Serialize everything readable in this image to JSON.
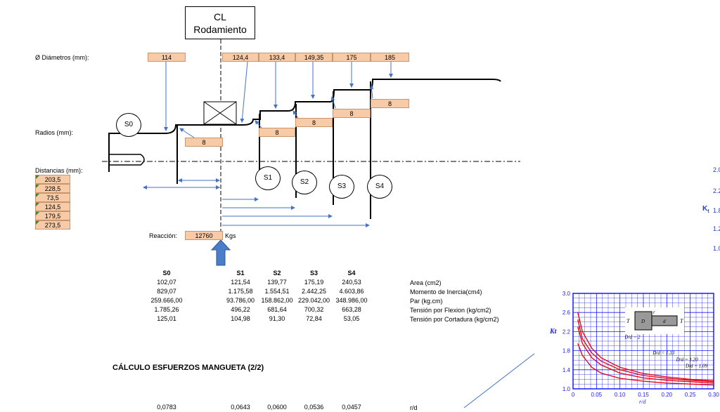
{
  "cl_box": {
    "line1": "CL",
    "line2": "Rodamiento"
  },
  "labels": {
    "diametros": "Ø Diámetros (mm):",
    "radios": "Radios (mm):",
    "distancias": "Distancias (mm):",
    "reaccion": "Reacción:",
    "reaccion_value": "12760",
    "reaccion_unit": "Kgs"
  },
  "diameters": [
    "114",
    "124,4",
    "133,4",
    "149,35",
    "175",
    "185"
  ],
  "radii": [
    "8",
    "8",
    "8",
    "8",
    "8"
  ],
  "distances": [
    "203,5",
    "228,5",
    "73,5",
    "124,5",
    "179,5",
    "273,5"
  ],
  "sections": [
    "S0",
    "S1",
    "S2",
    "S3",
    "S4"
  ],
  "table": {
    "headers": [
      "S0",
      "S1",
      "S2",
      "S3",
      "S4"
    ],
    "rows": [
      {
        "values": [
          "102,07",
          "121,54",
          "139,77",
          "175,19",
          "240,53"
        ],
        "label": "Area (cm2)"
      },
      {
        "values": [
          "829,07",
          "1.175,58",
          "1.554,51",
          "2.442,25",
          "4.603,86"
        ],
        "label": "Momento de Inercia(cm4)"
      },
      {
        "values": [
          "259.666,00",
          "93.786,00",
          "158.862,00",
          "229.042,00",
          "348.986,00"
        ],
        "label": "Par (kg.cm)"
      },
      {
        "values": [
          "1.785,26",
          "496,22",
          "681,64",
          "700,32",
          "663,28"
        ],
        "label": "Tensión por Flexion (kg/cm2)"
      },
      {
        "values": [
          "125,01",
          "104,98",
          "91,30",
          "72,84",
          "53,05"
        ],
        "label": "Tensión por Cortadura (kg/cm2)"
      }
    ],
    "partial_row": [
      "0,0783",
      "0,0643",
      "0,0600",
      "0,0536",
      "0,0457"
    ],
    "partial_label": "r/d"
  },
  "section_title": "CÁLCULO ESFUERZOS MANGUETA (2/2)",
  "right_edge_ticks": [
    "2.0",
    "2.2",
    "1.8",
    "1.2",
    "1.0"
  ],
  "kt_side_label": "K",
  "kt_side_sub": "t",
  "chart_data": {
    "type": "line",
    "title": "",
    "xlabel": "r/d",
    "ylabel": "Kt",
    "xlim": [
      0,
      0.3
    ],
    "ylim": [
      1.0,
      3.0
    ],
    "x_ticks": [
      "0",
      "0.05",
      "0.10",
      "0.15",
      "0.20",
      "0.25",
      "0.30"
    ],
    "y_ticks": [
      "1.0",
      "1.4",
      "1.8",
      "2.2",
      "2.6",
      "3.0"
    ],
    "grid": true,
    "inset_labels": {
      "T": "T",
      "D": "D",
      "d": "d",
      "r": "r"
    },
    "series": [
      {
        "name": "D/d = 2",
        "x": [
          0.01,
          0.02,
          0.04,
          0.06,
          0.1,
          0.15,
          0.2,
          0.25,
          0.3
        ],
        "y": [
          2.6,
          2.2,
          1.85,
          1.65,
          1.45,
          1.32,
          1.25,
          1.2,
          1.17
        ]
      },
      {
        "name": "D/d = 1.33",
        "x": [
          0.01,
          0.02,
          0.04,
          0.06,
          0.1,
          0.15,
          0.2,
          0.25,
          0.3
        ],
        "y": [
          2.45,
          2.05,
          1.75,
          1.58,
          1.4,
          1.28,
          1.22,
          1.18,
          1.15
        ]
      },
      {
        "name": "D/d = 1.20",
        "x": [
          0.01,
          0.02,
          0.04,
          0.06,
          0.1,
          0.15,
          0.2,
          0.25,
          0.3
        ],
        "y": [
          2.3,
          1.95,
          1.65,
          1.5,
          1.33,
          1.23,
          1.18,
          1.15,
          1.12
        ]
      },
      {
        "name": "D/d = 1.09",
        "x": [
          0.01,
          0.02,
          0.04,
          0.06,
          0.1,
          0.15,
          0.2,
          0.25,
          0.3
        ],
        "y": [
          1.95,
          1.7,
          1.45,
          1.33,
          1.22,
          1.16,
          1.12,
          1.1,
          1.08
        ]
      }
    ]
  }
}
